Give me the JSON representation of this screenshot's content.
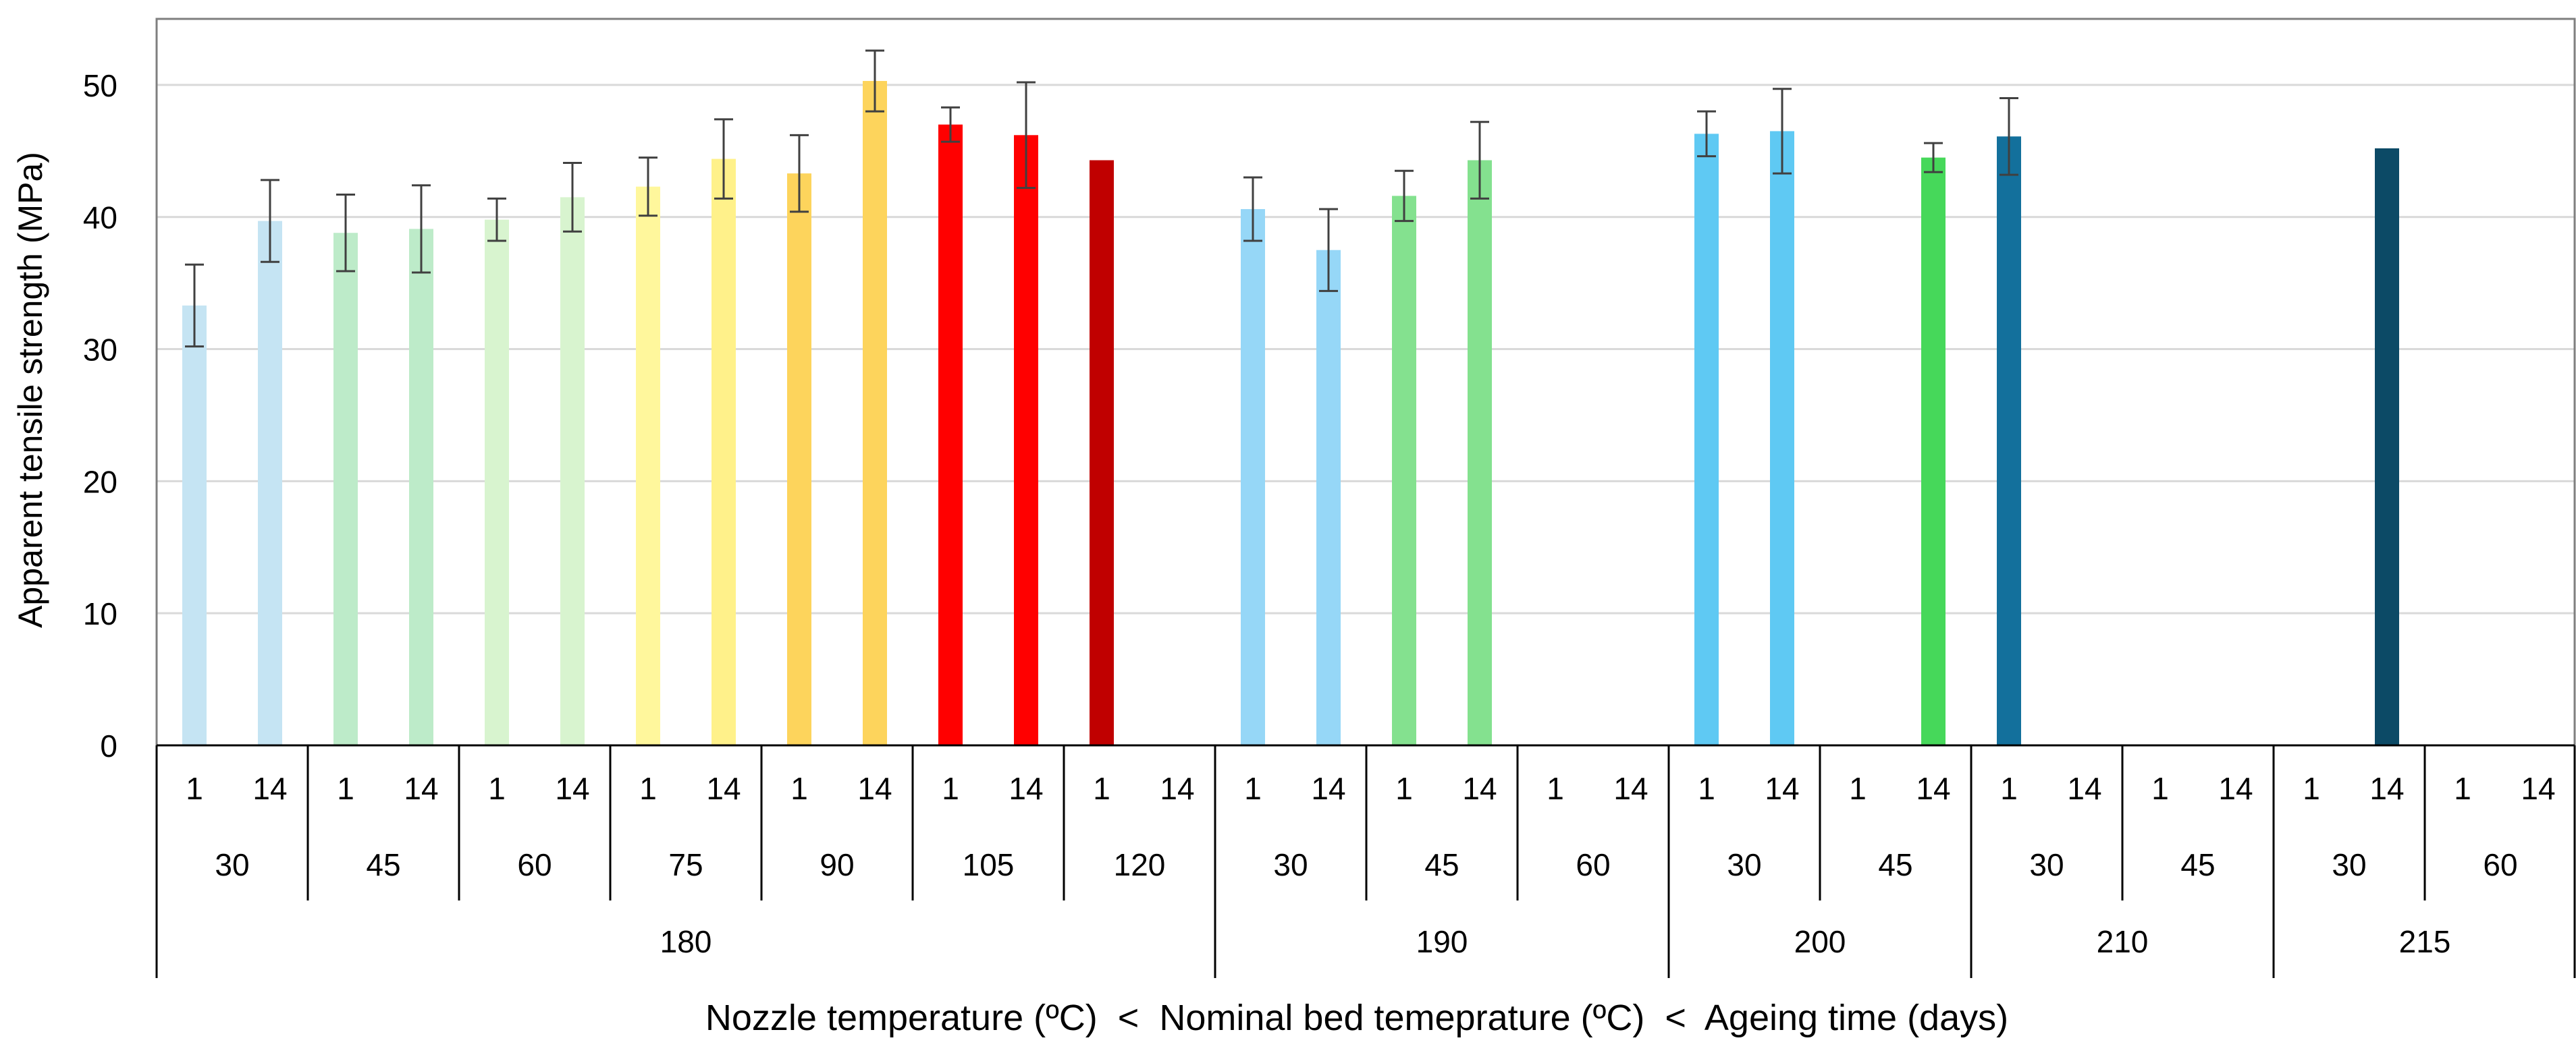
{
  "chart_data": {
    "type": "bar",
    "ylabel": "Apparent tensile strength (MPa)",
    "xlabel": "Nozzle temperature (ºC)  <  Nominal bed temeprature (ºC)  <  Ageing time (days)",
    "ylim": [
      0,
      55
    ],
    "yticks": [
      0,
      10,
      20,
      30,
      40,
      50
    ],
    "grid": true,
    "groups": [
      {
        "nozzle": "180",
        "beds": [
          {
            "bed": "30",
            "ages": [
              {
                "t": "1",
                "v": 33.3,
                "e": 3.1,
                "c": "#c5e4f3"
              },
              {
                "t": "14",
                "v": 39.7,
                "e": 3.1,
                "c": "#c5e4f3"
              }
            ]
          },
          {
            "bed": "45",
            "ages": [
              {
                "t": "1",
                "v": 38.8,
                "e": 2.9,
                "c": "#bdebc9"
              },
              {
                "t": "14",
                "v": 39.1,
                "e": 3.3,
                "c": "#bdebc9"
              }
            ]
          },
          {
            "bed": "60",
            "ages": [
              {
                "t": "1",
                "v": 39.8,
                "e": 1.6,
                "c": "#d8f4cf"
              },
              {
                "t": "14",
                "v": 41.5,
                "e": 2.6,
                "c": "#d8f4cf"
              }
            ]
          },
          {
            "bed": "75",
            "ages": [
              {
                "t": "1",
                "v": 42.3,
                "e": 2.2,
                "c": "#fff79c"
              },
              {
                "t": "14",
                "v": 44.4,
                "e": 3.0,
                "c": "#fff18a"
              }
            ]
          },
          {
            "bed": "90",
            "ages": [
              {
                "t": "1",
                "v": 43.3,
                "e": 2.9,
                "c": "#fdd45c"
              },
              {
                "t": "14",
                "v": 50.3,
                "e": 2.3,
                "c": "#fdd45c"
              }
            ]
          },
          {
            "bed": "105",
            "ages": [
              {
                "t": "1",
                "v": 47.0,
                "e": 1.3,
                "c": "#ff0000"
              },
              {
                "t": "14",
                "v": 46.2,
                "e": 4.0,
                "c": "#ff0000"
              }
            ]
          },
          {
            "bed": "120",
            "ages": [
              {
                "t": "1",
                "v": 44.3,
                "e": 0,
                "c": "#c00000"
              },
              {
                "t": "14",
                "v": null,
                "e": 0,
                "c": "#c00000"
              }
            ]
          }
        ]
      },
      {
        "nozzle": "190",
        "beds": [
          {
            "bed": "30",
            "ages": [
              {
                "t": "1",
                "v": 40.6,
                "e": 2.4,
                "c": "#96d7f7"
              },
              {
                "t": "14",
                "v": 37.5,
                "e": 3.1,
                "c": "#96d7f7"
              }
            ]
          },
          {
            "bed": "45",
            "ages": [
              {
                "t": "1",
                "v": 41.6,
                "e": 1.9,
                "c": "#84e18f"
              },
              {
                "t": "14",
                "v": 44.3,
                "e": 2.9,
                "c": "#84e18f"
              }
            ]
          },
          {
            "bed": "60",
            "ages": [
              {
                "t": "1",
                "v": null,
                "e": 0,
                "c": "#84e18f"
              },
              {
                "t": "14",
                "v": null,
                "e": 0,
                "c": "#84e18f"
              }
            ]
          }
        ]
      },
      {
        "nozzle": "200",
        "beds": [
          {
            "bed": "30",
            "ages": [
              {
                "t": "1",
                "v": 46.3,
                "e": 1.7,
                "c": "#5fc9f3"
              },
              {
                "t": "14",
                "v": 46.5,
                "e": 3.2,
                "c": "#5fc9f3"
              }
            ]
          },
          {
            "bed": "45",
            "ages": [
              {
                "t": "1",
                "v": null,
                "e": 0,
                "c": "#46d85a"
              },
              {
                "t": "14",
                "v": 44.5,
                "e": 1.1,
                "c": "#46d85a"
              }
            ]
          }
        ]
      },
      {
        "nozzle": "210",
        "beds": [
          {
            "bed": "30",
            "ages": [
              {
                "t": "1",
                "v": 46.1,
                "e": 2.9,
                "c": "#13709c"
              },
              {
                "t": "14",
                "v": null,
                "e": 0,
                "c": "#13709c"
              }
            ]
          },
          {
            "bed": "45",
            "ages": [
              {
                "t": "1",
                "v": null,
                "e": 0,
                "c": "#13709c"
              },
              {
                "t": "14",
                "v": null,
                "e": 0,
                "c": "#13709c"
              }
            ]
          }
        ]
      },
      {
        "nozzle": "215",
        "beds": [
          {
            "bed": "30",
            "ages": [
              {
                "t": "1",
                "v": null,
                "e": 0,
                "c": "#0c4a66"
              },
              {
                "t": "14",
                "v": 45.2,
                "e": 0,
                "c": "#0c4a66"
              }
            ]
          },
          {
            "bed": "60",
            "ages": [
              {
                "t": "1",
                "v": null,
                "e": 0,
                "c": "#0c4a66"
              },
              {
                "t": "14",
                "v": null,
                "e": 0,
                "c": "#0c4a66"
              }
            ]
          }
        ]
      }
    ]
  }
}
